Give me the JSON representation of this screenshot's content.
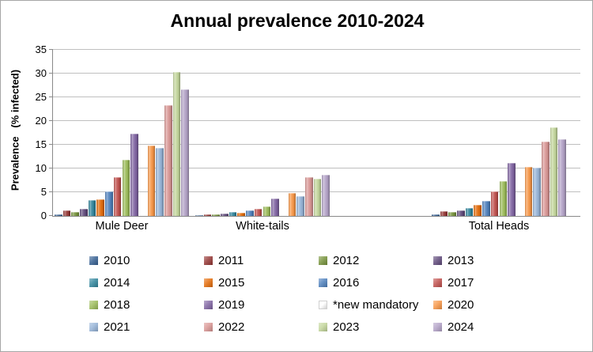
{
  "chart_data": {
    "type": "bar",
    "title": "Annual prevalence 2010-2024",
    "ylabel": "Prevalence   (% infected)",
    "xlabel": "",
    "ylim": [
      0,
      35
    ],
    "ytick_step": 5,
    "yticks": [
      0,
      5,
      10,
      15,
      20,
      25,
      30,
      35
    ],
    "grid": true,
    "legend_position": "bottom",
    "categories": [
      "Mule Deer",
      "White-tails",
      "Total Heads"
    ],
    "series": [
      {
        "name": "2010",
        "color": "#366092",
        "values": [
          0.4,
          0.2,
          0.3
        ]
      },
      {
        "name": "2011",
        "color": "#953735",
        "values": [
          1.1,
          0.3,
          1.0
        ]
      },
      {
        "name": "2012",
        "color": "#77933C",
        "values": [
          0.9,
          0.4,
          0.9
        ]
      },
      {
        "name": "2013",
        "color": "#604A7B",
        "values": [
          1.5,
          0.5,
          1.2
        ]
      },
      {
        "name": "2014",
        "color": "#31859C",
        "values": [
          3.3,
          0.9,
          1.7
        ]
      },
      {
        "name": "2015",
        "color": "#E46C0A",
        "values": [
          3.5,
          0.7,
          2.3
        ]
      },
      {
        "name": "2016",
        "color": "#4F81BD",
        "values": [
          5.2,
          1.2,
          3.2
        ]
      },
      {
        "name": "2017",
        "color": "#C0504D",
        "values": [
          8.2,
          1.5,
          5.1
        ]
      },
      {
        "name": "2018",
        "color": "#9BBB59",
        "values": [
          11.9,
          2.0,
          7.3
        ]
      },
      {
        "name": "2019",
        "color": "#8064A2",
        "values": [
          17.4,
          3.6,
          11.1
        ]
      },
      {
        "name": "*new mandatory",
        "color": "#FFFFFF",
        "values": [
          0,
          0,
          0
        ]
      },
      {
        "name": "2020",
        "color": "#F79646",
        "values": [
          14.8,
          4.8,
          10.3
        ]
      },
      {
        "name": "2021",
        "color": "#95B3D7",
        "values": [
          14.3,
          4.1,
          10.2
        ]
      },
      {
        "name": "2022",
        "color": "#D99694",
        "values": [
          23.3,
          8.2,
          15.7
        ]
      },
      {
        "name": "2023",
        "color": "#C3D69B",
        "values": [
          30.4,
          7.9,
          18.6
        ]
      },
      {
        "name": "2024",
        "color": "#B3A2C7",
        "values": [
          26.7,
          8.7,
          16.1
        ]
      }
    ]
  }
}
